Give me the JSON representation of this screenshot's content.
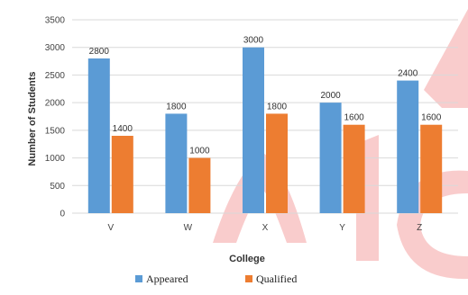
{
  "chart_data": {
    "type": "bar",
    "categories": [
      "V",
      "W",
      "X",
      "Y",
      "Z"
    ],
    "series": [
      {
        "name": "Appeared",
        "values": [
          2800,
          1800,
          3000,
          2000,
          2400
        ],
        "color": "#5B9BD5"
      },
      {
        "name": "Qualified",
        "values": [
          1400,
          1000,
          1800,
          1600,
          1600
        ],
        "color": "#ED7D31"
      }
    ],
    "data_labels": [
      [
        "2800",
        "1800",
        "3000",
        "2000",
        "2400"
      ],
      [
        "1400",
        "1000",
        "1800",
        "1600",
        "1600"
      ]
    ],
    "xlabel": "College",
    "ylabel": "Number of Students",
    "ylim": [
      0,
      3500
    ],
    "yticks": [
      "0",
      "500",
      "1000",
      "1500",
      "2000",
      "2500",
      "3000",
      "3500"
    ],
    "grid": true,
    "legend_position": "bottom",
    "watermark_color": "#F4A3A3"
  }
}
